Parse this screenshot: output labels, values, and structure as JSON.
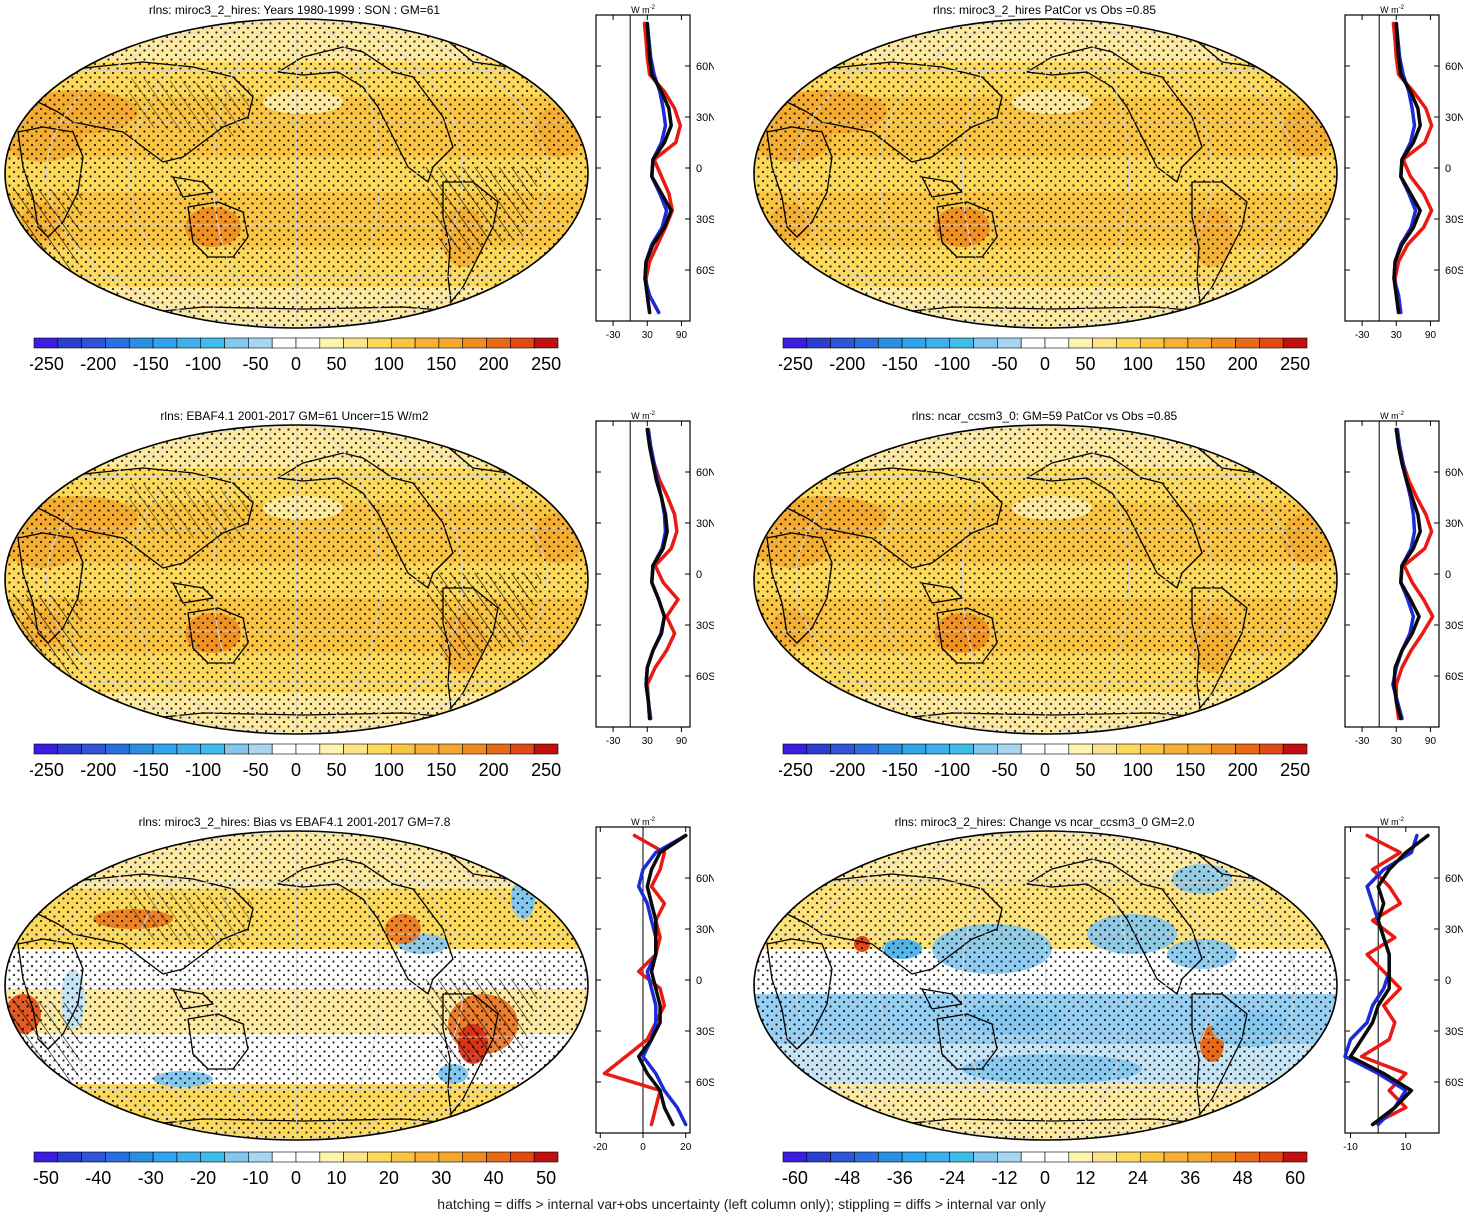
{
  "colors": {
    "warm": [
      "#fffbe0",
      "#fde9a0",
      "#fcd95a",
      "#f8c441",
      "#f3a92d",
      "#ee8c1f",
      "#e86a18",
      "#e04a15",
      "#d82a12",
      "#c01010"
    ],
    "cool": [
      "#c6e4f4",
      "#84c7ee",
      "#3fb0ec",
      "#2a8fe0",
      "#2f63d4",
      "#2b3fd0",
      "#3a1ee0"
    ],
    "zonal_model": "#0a0a0a",
    "zonal_obs": "#1c2bd8",
    "zonal_other": "#ea1a12"
  },
  "footnote": "hatching = diffs > internal var+obs uncertainty (left column only); stippling = diffs > internal var only",
  "panels": [
    {
      "title": "rlns: miroc3_2_hires: Years 1980-1999 : SON : GM=61"
    },
    {
      "title": "rlns: miroc3_2_hires PatCor vs Obs =0.85"
    },
    {
      "title": "rlns: EBAF4.1 2001-2017 GM=61 Uncer=15 W/m2"
    },
    {
      "title": "rlns: ncar_ccsm3_0: GM=59 PatCor vs Obs =0.85"
    },
    {
      "title": "rlns: miroc3_2_hires: Bias vs EBAF4.1 2001-2017  GM=7.8"
    },
    {
      "title": "rlns: miroc3_2_hires: Change vs ncar_ccsm3_0 GM=2.0"
    }
  ],
  "chart_data": [
    {
      "type": "line",
      "title": "rlns: miroc3_2_hires: Years 1980-1999 : SON : GM=61",
      "xlabel": "W m-2",
      "xticks": [
        -30,
        30,
        90
      ],
      "xlim": [
        -60,
        105
      ],
      "ylim": [
        -90,
        90
      ],
      "lat_ticks": [
        "60N",
        "30N",
        "0",
        "30S",
        "60S"
      ],
      "colorbar": {
        "labels": [
          "-250",
          "-200",
          "-150",
          "-100",
          "-50",
          "0",
          "50",
          "100",
          "150",
          "200",
          "250"
        ]
      },
      "lat": [
        85,
        75,
        65,
        55,
        45,
        35,
        25,
        15,
        5,
        -5,
        -15,
        -25,
        -35,
        -45,
        -55,
        -65,
        -75,
        -85
      ],
      "series": [
        {
          "color": "black",
          "values": [
            30,
            32,
            34,
            38,
            55,
            68,
            72,
            60,
            40,
            38,
            55,
            72,
            60,
            40,
            28,
            26,
            30,
            34
          ]
        },
        {
          "color": "blue",
          "values": [
            30,
            33,
            36,
            42,
            52,
            58,
            62,
            55,
            40,
            38,
            52,
            64,
            56,
            38,
            28,
            26,
            34,
            50
          ]
        },
        {
          "color": "red",
          "values": [
            25,
            28,
            30,
            34,
            60,
            78,
            88,
            80,
            42,
            55,
            68,
            74,
            62,
            48,
            34,
            28,
            30,
            34
          ]
        }
      ]
    },
    {
      "type": "line",
      "title": "rlns: miroc3_2_hires PatCor vs Obs =0.85",
      "xlabel": "W m-2",
      "xticks": [
        -30,
        30,
        90
      ],
      "xlim": [
        -60,
        105
      ],
      "ylim": [
        -90,
        90
      ],
      "lat_ticks": [
        "60N",
        "30N",
        "0",
        "30S",
        "60S"
      ],
      "colorbar": {
        "labels": [
          "-250",
          "-200",
          "-150",
          "-100",
          "-50",
          "0",
          "50",
          "100",
          "150",
          "200",
          "250"
        ]
      },
      "lat": [
        85,
        75,
        65,
        55,
        45,
        35,
        25,
        15,
        5,
        -5,
        -15,
        -25,
        -35,
        -45,
        -55,
        -65,
        -75,
        -85
      ],
      "series": [
        {
          "color": "black",
          "values": [
            30,
            32,
            34,
            38,
            55,
            68,
            72,
            60,
            40,
            38,
            55,
            72,
            60,
            40,
            28,
            26,
            30,
            34
          ]
        },
        {
          "color": "blue",
          "values": [
            30,
            33,
            36,
            42,
            52,
            58,
            62,
            55,
            40,
            38,
            52,
            64,
            56,
            38,
            28,
            26,
            34,
            38
          ]
        },
        {
          "color": "red",
          "values": [
            25,
            28,
            30,
            34,
            60,
            82,
            92,
            80,
            42,
            55,
            78,
            92,
            78,
            50,
            34,
            28,
            30,
            34
          ]
        }
      ]
    },
    {
      "type": "line",
      "title": "rlns: EBAF4.1 2001-2017 GM=61 Uncer=15 W/m2",
      "xlabel": "W m-2",
      "xticks": [
        -30,
        30,
        90
      ],
      "xlim": [
        -60,
        105
      ],
      "ylim": [
        -90,
        90
      ],
      "lat_ticks": [
        "60N",
        "30N",
        "0",
        "30S",
        "60S"
      ],
      "colorbar": {
        "labels": [
          "-250",
          "-200",
          "-150",
          "-100",
          "-50",
          "0",
          "50",
          "100",
          "150",
          "200",
          "250"
        ]
      },
      "lat": [
        85,
        75,
        65,
        55,
        45,
        35,
        25,
        15,
        5,
        -5,
        -15,
        -25,
        -35,
        -45,
        -55,
        -65,
        -75,
        -85
      ],
      "series": [
        {
          "color": "black",
          "values": [
            30,
            34,
            40,
            46,
            55,
            62,
            65,
            58,
            40,
            38,
            50,
            60,
            55,
            40,
            30,
            28,
            32,
            34
          ]
        },
        {
          "color": "blue",
          "values": [
            32,
            36,
            42,
            48,
            55,
            60,
            62,
            56,
            40,
            38,
            50,
            60,
            54,
            40,
            30,
            28,
            32,
            36
          ]
        },
        {
          "color": "red",
          "values": [
            30,
            36,
            42,
            52,
            66,
            78,
            82,
            72,
            44,
            58,
            84,
            64,
            78,
            64,
            44,
            30,
            32,
            34
          ]
        }
      ]
    },
    {
      "type": "line",
      "title": "rlns: ncar_ccsm3_0: GM=59 PatCor vs Obs =0.85",
      "xlabel": "W m-2",
      "xticks": [
        -30,
        30,
        90
      ],
      "xlim": [
        -60,
        105
      ],
      "ylim": [
        -90,
        90
      ],
      "lat_ticks": [
        "60N",
        "30N",
        "0",
        "30S",
        "60S"
      ],
      "colorbar": {
        "labels": [
          "-250",
          "-200",
          "-150",
          "-100",
          "-50",
          "0",
          "50",
          "100",
          "150",
          "200",
          "250"
        ]
      },
      "lat": [
        85,
        75,
        65,
        55,
        45,
        35,
        25,
        15,
        5,
        -5,
        -15,
        -25,
        -35,
        -45,
        -55,
        -65,
        -75,
        -85
      ],
      "series": [
        {
          "color": "black",
          "values": [
            30,
            34,
            40,
            48,
            58,
            68,
            72,
            60,
            40,
            38,
            55,
            70,
            58,
            40,
            28,
            26,
            30,
            38
          ]
        },
        {
          "color": "blue",
          "values": [
            32,
            36,
            42,
            48,
            55,
            60,
            62,
            56,
            40,
            38,
            50,
            60,
            54,
            40,
            30,
            24,
            32,
            40
          ]
        },
        {
          "color": "red",
          "values": [
            30,
            36,
            42,
            52,
            66,
            82,
            92,
            80,
            44,
            58,
            78,
            94,
            76,
            56,
            40,
            30,
            30,
            34
          ]
        }
      ]
    },
    {
      "type": "line",
      "title": "rlns: miroc3_2_hires: Bias vs EBAF4.1 2001-2017  GM=7.8",
      "xlabel": "W m-2",
      "xticks": [
        -20,
        0,
        20
      ],
      "xlim": [
        -22,
        22
      ],
      "ylim": [
        -90,
        90
      ],
      "lat_ticks": [
        "60N",
        "30N",
        "0",
        "30S",
        "60S"
      ],
      "colorbar": {
        "labels": [
          "-50",
          "-40",
          "-30",
          "-20",
          "-10",
          "0",
          "10",
          "20",
          "30",
          "40",
          "50"
        ]
      },
      "lat": [
        85,
        75,
        65,
        55,
        45,
        35,
        25,
        15,
        5,
        -5,
        -15,
        -25,
        -35,
        -45,
        -55,
        -65,
        -75,
        -85
      ],
      "series": [
        {
          "color": "black",
          "values": [
            20,
            8,
            4,
            2,
            4,
            6,
            6,
            6,
            4,
            6,
            8,
            8,
            4,
            -2,
            2,
            8,
            10,
            14
          ]
        },
        {
          "color": "blue",
          "values": [
            20,
            6,
            0,
            -2,
            2,
            4,
            6,
            6,
            2,
            4,
            6,
            6,
            4,
            0,
            6,
            10,
            16,
            20
          ]
        },
        {
          "color": "red",
          "values": [
            -4,
            10,
            8,
            4,
            10,
            6,
            8,
            6,
            -2,
            8,
            10,
            6,
            2,
            -8,
            -18,
            8,
            6,
            4
          ]
        }
      ]
    },
    {
      "type": "line",
      "title": "rlns: miroc3_2_hires: Change vs ncar_ccsm3_0 GM=2.0",
      "xlabel": "W m-2",
      "xticks": [
        -10,
        10
      ],
      "xlim": [
        -12,
        22
      ],
      "ylim": [
        -90,
        90
      ],
      "lat_ticks": [
        "60N",
        "30N",
        "0",
        "30S",
        "60S"
      ],
      "colorbar": {
        "labels": [
          "-60",
          "-48",
          "-36",
          "-24",
          "-12",
          "0",
          "12",
          "24",
          "36",
          "48",
          "60"
        ]
      },
      "lat": [
        85,
        75,
        65,
        55,
        45,
        35,
        25,
        15,
        5,
        -5,
        -15,
        -25,
        -35,
        -45,
        -55,
        -65,
        -75,
        -85
      ],
      "series": [
        {
          "color": "black",
          "values": [
            18,
            10,
            4,
            0,
            2,
            0,
            2,
            4,
            4,
            4,
            0,
            -2,
            -6,
            -10,
            2,
            12,
            6,
            -2
          ]
        },
        {
          "color": "blue",
          "values": [
            14,
            12,
            2,
            -4,
            -2,
            0,
            2,
            4,
            4,
            2,
            -2,
            -4,
            -10,
            -12,
            0,
            10,
            6,
            0
          ]
        },
        {
          "color": "red",
          "values": [
            -4,
            8,
            -2,
            4,
            8,
            -2,
            6,
            -4,
            2,
            8,
            2,
            6,
            4,
            -6,
            10,
            4,
            10,
            -2
          ]
        }
      ]
    }
  ]
}
